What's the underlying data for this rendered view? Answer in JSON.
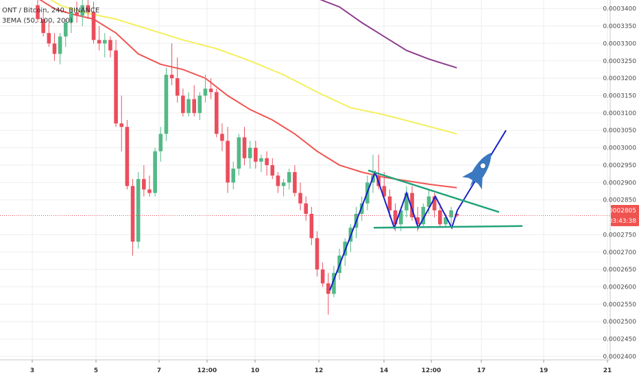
{
  "header": {
    "symbol_title": "ONT / Bitcoin, 240, BINANCE",
    "indicator_label": "3EMA (50, 100, 200)"
  },
  "price_badge": {
    "price": "0.0002805",
    "countdown": "03:43:38"
  },
  "colors": {
    "up": "#53b987",
    "down": "#eb4d5c",
    "ema50": "#ef5350",
    "ema100": "#f4ef5b",
    "ema200": "#8e3c8c",
    "pattern": "#1520c8",
    "triangle": "#22a27a",
    "rocket": "#3a78c2",
    "badge": "#ef5350",
    "grid": "#eeeeee"
  },
  "rocket": {
    "icon": "rocket-icon"
  },
  "chart_data": {
    "type": "candlestick",
    "y_ticks": [
      "0.0003400",
      "0.0003350",
      "0.0003300",
      "0.0003250",
      "0.0003200",
      "0.0003150",
      "0.0003100",
      "0.0003050",
      "0.0003000",
      "0.0002950",
      "0.0002900",
      "0.0002850",
      "0.0002750",
      "0.0002700",
      "0.0002650",
      "0.0002600",
      "0.0002550",
      "0.0002500",
      "0.0002450",
      "0.0002400"
    ],
    "ylim": [
      0.000239,
      0.0003425
    ],
    "x_ticks": [
      "3",
      "5",
      "7",
      "12:00",
      "10",
      "12",
      "14",
      "12:00",
      "17",
      "19",
      "21"
    ],
    "grid": true,
    "last_price": 0.0002805,
    "candles": [
      {
        "o": 0.000341,
        "h": 0.000343,
        "l": 0.000336,
        "c": 0.000337
      },
      {
        "o": 0.000337,
        "h": 0.000339,
        "l": 0.000332,
        "c": 0.000333
      },
      {
        "o": 0.000333,
        "h": 0.000336,
        "l": 0.000329,
        "c": 0.00033
      },
      {
        "o": 0.00033,
        "h": 0.000333,
        "l": 0.000325,
        "c": 0.000327
      },
      {
        "o": 0.000327,
        "h": 0.000333,
        "l": 0.000324,
        "c": 0.000332
      },
      {
        "o": 0.000332,
        "h": 0.000337,
        "l": 0.000329,
        "c": 0.000336
      },
      {
        "o": 0.000336,
        "h": 0.00034,
        "l": 0.000333,
        "c": 0.000339
      },
      {
        "o": 0.000339,
        "h": 0.000342,
        "l": 0.000336,
        "c": 0.000338
      },
      {
        "o": 0.000338,
        "h": 0.000343,
        "l": 0.000335,
        "c": 0.000341
      },
      {
        "o": 0.000341,
        "h": 0.000344,
        "l": 0.000337,
        "c": 0.000339
      },
      {
        "o": 0.000339,
        "h": 0.000342,
        "l": 0.00033,
        "c": 0.000331
      },
      {
        "o": 0.000331,
        "h": 0.000335,
        "l": 0.000328,
        "c": 0.00033
      },
      {
        "o": 0.00033,
        "h": 0.000333,
        "l": 0.000326,
        "c": 0.000331
      },
      {
        "o": 0.000331,
        "h": 0.000332,
        "l": 0.000326,
        "c": 0.000328
      },
      {
        "o": 0.000328,
        "h": 0.000331,
        "l": 0.000306,
        "c": 0.000307
      },
      {
        "o": 0.000307,
        "h": 0.000315,
        "l": 0.000299,
        "c": 0.000306
      },
      {
        "o": 0.000306,
        "h": 0.000308,
        "l": 0.000288,
        "c": 0.000289
      },
      {
        "o": 0.000289,
        "h": 0.000291,
        "l": 0.000269,
        "c": 0.000273
      },
      {
        "o": 0.000273,
        "h": 0.000293,
        "l": 0.000271,
        "c": 0.000291
      },
      {
        "o": 0.000291,
        "h": 0.000295,
        "l": 0.000286,
        "c": 0.000288
      },
      {
        "o": 0.000288,
        "h": 0.000292,
        "l": 0.000286,
        "c": 0.000287
      },
      {
        "o": 0.000287,
        "h": 0.0003,
        "l": 0.000286,
        "c": 0.000299
      },
      {
        "o": 0.000299,
        "h": 0.000306,
        "l": 0.000296,
        "c": 0.000304
      },
      {
        "o": 0.000304,
        "h": 0.000323,
        "l": 0.000302,
        "c": 0.000321
      },
      {
        "o": 0.000321,
        "h": 0.00033,
        "l": 0.000318,
        "c": 0.00032
      },
      {
        "o": 0.00032,
        "h": 0.000326,
        "l": 0.000313,
        "c": 0.000315
      },
      {
        "o": 0.000315,
        "h": 0.000317,
        "l": 0.000309,
        "c": 0.00031
      },
      {
        "o": 0.00031,
        "h": 0.000316,
        "l": 0.000309,
        "c": 0.000314
      },
      {
        "o": 0.000314,
        "h": 0.000318,
        "l": 0.000309,
        "c": 0.00031
      },
      {
        "o": 0.00031,
        "h": 0.000316,
        "l": 0.000308,
        "c": 0.000315
      },
      {
        "o": 0.000315,
        "h": 0.000321,
        "l": 0.000313,
        "c": 0.000317
      },
      {
        "o": 0.000317,
        "h": 0.00032,
        "l": 0.000314,
        "c": 0.000316
      },
      {
        "o": 0.000316,
        "h": 0.000317,
        "l": 0.000303,
        "c": 0.000304
      },
      {
        "o": 0.000304,
        "h": 0.000307,
        "l": 0.000299,
        "c": 0.000302
      },
      {
        "o": 0.000302,
        "h": 0.000306,
        "l": 0.000287,
        "c": 0.00029
      },
      {
        "o": 0.00029,
        "h": 0.000296,
        "l": 0.000288,
        "c": 0.000294
      },
      {
        "o": 0.000294,
        "h": 0.000304,
        "l": 0.000292,
        "c": 0.000303
      },
      {
        "o": 0.000303,
        "h": 0.000306,
        "l": 0.000295,
        "c": 0.000297
      },
      {
        "o": 0.000297,
        "h": 0.000302,
        "l": 0.000294,
        "c": 0.0003
      },
      {
        "o": 0.0003,
        "h": 0.000302,
        "l": 0.000294,
        "c": 0.000296
      },
      {
        "o": 0.000296,
        "h": 0.000298,
        "l": 0.000293,
        "c": 0.000297
      },
      {
        "o": 0.000297,
        "h": 0.000299,
        "l": 0.000292,
        "c": 0.000295
      },
      {
        "o": 0.000295,
        "h": 0.000297,
        "l": 0.000291,
        "c": 0.000292
      },
      {
        "o": 0.000292,
        "h": 0.000293,
        "l": 0.000287,
        "c": 0.000289
      },
      {
        "o": 0.000289,
        "h": 0.000291,
        "l": 0.000286,
        "c": 0.00029
      },
      {
        "o": 0.00029,
        "h": 0.000294,
        "l": 0.000288,
        "c": 0.000293
      },
      {
        "o": 0.000293,
        "h": 0.000295,
        "l": 0.000286,
        "c": 0.000287
      },
      {
        "o": 0.000287,
        "h": 0.00029,
        "l": 0.000282,
        "c": 0.000284
      },
      {
        "o": 0.000284,
        "h": 0.000286,
        "l": 0.000279,
        "c": 0.000281
      },
      {
        "o": 0.000281,
        "h": 0.000283,
        "l": 0.000272,
        "c": 0.000274
      },
      {
        "o": 0.000274,
        "h": 0.000276,
        "l": 0.000263,
        "c": 0.000265
      },
      {
        "o": 0.000265,
        "h": 0.000267,
        "l": 0.00026,
        "c": 0.000261
      },
      {
        "o": 0.000261,
        "h": 0.000264,
        "l": 0.000252,
        "c": 0.000258
      },
      {
        "o": 0.000258,
        "h": 0.000266,
        "l": 0.000257,
        "c": 0.000264
      },
      {
        "o": 0.000264,
        "h": 0.000271,
        "l": 0.000262,
        "c": 0.000269
      },
      {
        "o": 0.000269,
        "h": 0.000274,
        "l": 0.000266,
        "c": 0.000273
      },
      {
        "o": 0.000273,
        "h": 0.000278,
        "l": 0.00027,
        "c": 0.000277
      },
      {
        "o": 0.000277,
        "h": 0.000283,
        "l": 0.000274,
        "c": 0.000281
      },
      {
        "o": 0.000281,
        "h": 0.000286,
        "l": 0.000279,
        "c": 0.000284
      },
      {
        "o": 0.000284,
        "h": 0.000292,
        "l": 0.000282,
        "c": 0.00029
      },
      {
        "o": 0.00029,
        "h": 0.000298,
        "l": 0.000287,
        "c": 0.000292
      },
      {
        "o": 0.000292,
        "h": 0.000298,
        "l": 0.000288,
        "c": 0.000289
      },
      {
        "o": 0.000289,
        "h": 0.000293,
        "l": 0.000285,
        "c": 0.000286
      },
      {
        "o": 0.000286,
        "h": 0.000288,
        "l": 0.00028,
        "c": 0.000282
      },
      {
        "o": 0.000282,
        "h": 0.000284,
        "l": 0.000276,
        "c": 0.000278
      },
      {
        "o": 0.000278,
        "h": 0.000283,
        "l": 0.000276,
        "c": 0.000282
      },
      {
        "o": 0.000282,
        "h": 0.000289,
        "l": 0.00028,
        "c": 0.000287
      },
      {
        "o": 0.000287,
        "h": 0.000289,
        "l": 0.000279,
        "c": 0.00028
      },
      {
        "o": 0.00028,
        "h": 0.000283,
        "l": 0.000276,
        "c": 0.000278
      },
      {
        "o": 0.000278,
        "h": 0.000284,
        "l": 0.000277,
        "c": 0.000283
      },
      {
        "o": 0.000283,
        "h": 0.000288,
        "l": 0.000281,
        "c": 0.000286
      },
      {
        "o": 0.000286,
        "h": 0.000287,
        "l": 0.00028,
        "c": 0.000282
      },
      {
        "o": 0.000282,
        "h": 0.000284,
        "l": 0.000277,
        "c": 0.000278
      },
      {
        "o": 0.000278,
        "h": 0.000281,
        "l": 0.000277,
        "c": 0.00028
      },
      {
        "o": 0.00028,
        "h": 0.000283,
        "l": 0.000278,
        "c": 0.000282
      },
      {
        "o": 0.000281,
        "h": 0.0002815,
        "l": 0.00028,
        "c": 0.0002805
      }
    ],
    "ema50": [
      [
        0,
        0.000343
      ],
      [
        3,
        0.00034
      ],
      [
        6,
        0.0003385
      ],
      [
        10,
        0.000337
      ],
      [
        14,
        0.000333
      ],
      [
        18,
        0.000327
      ],
      [
        22,
        0.000324
      ],
      [
        26,
        0.0003225
      ],
      [
        30,
        0.00032
      ],
      [
        34,
        0.000315
      ],
      [
        38,
        0.000311
      ],
      [
        42,
        0.000308
      ],
      [
        46,
        0.000304
      ],
      [
        50,
        0.000299
      ],
      [
        54,
        0.000295
      ],
      [
        58,
        0.000293
      ],
      [
        62,
        0.0002915
      ],
      [
        66,
        0.0002905
      ],
      [
        70,
        0.0002895
      ],
      [
        75,
        0.0002885
      ]
    ],
    "ema100": [
      [
        2,
        0.000343
      ],
      [
        4,
        0.000341
      ],
      [
        8,
        0.000339
      ],
      [
        14,
        0.000337
      ],
      [
        20,
        0.000334
      ],
      [
        26,
        0.000331
      ],
      [
        32,
        0.0003285
      ],
      [
        38,
        0.000325
      ],
      [
        44,
        0.000321
      ],
      [
        50,
        0.000316
      ],
      [
        56,
        0.0003115
      ],
      [
        62,
        0.0003095
      ],
      [
        68,
        0.000307
      ],
      [
        75,
        0.000304
      ]
    ],
    "ema200": [
      [
        50,
        0.000343
      ],
      [
        54,
        0.0003405
      ],
      [
        58,
        0.000336
      ],
      [
        62,
        0.000332
      ],
      [
        66,
        0.000328
      ],
      [
        70,
        0.0003255
      ],
      [
        75,
        0.000323
      ]
    ],
    "pattern_line": [
      [
        0.000259,
        481
      ],
      [
        0.000293,
        547
      ],
      [
        0.000277,
        575
      ],
      [
        0.000287,
        593
      ],
      [
        0.000277,
        610
      ],
      [
        0.000286,
        635
      ],
      [
        0.000277,
        659
      ],
      [
        0.000282,
        667
      ],
      [
        0.000305,
        738
      ]
    ],
    "triangle_upper": [
      [
        0.0002935,
        537
      ],
      [
        0.0002815,
        728
      ]
    ],
    "triangle_lower": [
      [
        0.000277,
        545
      ],
      [
        0.0002775,
        762
      ]
    ]
  }
}
